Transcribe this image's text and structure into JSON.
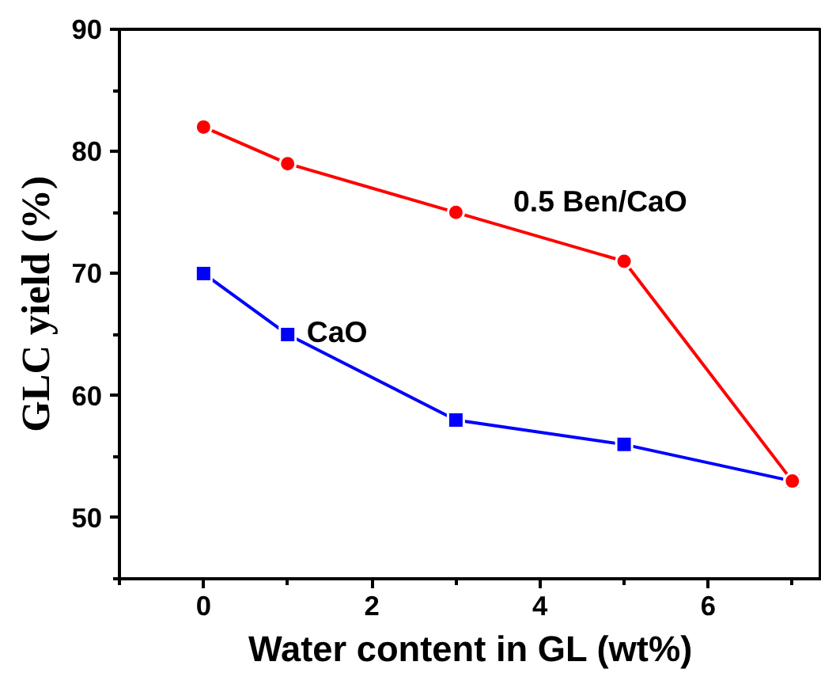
{
  "chart_data": {
    "type": "line",
    "xlabel": "Water content in GL (wt%)",
    "ylabel": "GLC yield (%)",
    "x": [
      0,
      1,
      3,
      5,
      7
    ],
    "series": [
      {
        "name": "0.5 Ben/CaO",
        "color": "#ff0000",
        "marker": "circle",
        "values": [
          82,
          79,
          75,
          71,
          53
        ]
      },
      {
        "name": "CaO",
        "color": "#0000ff",
        "marker": "square",
        "values": [
          70,
          65,
          58,
          56,
          53
        ]
      }
    ],
    "xlim": [
      -1,
      7.35
    ],
    "ylim": [
      45,
      90
    ],
    "xticks": [
      0,
      2,
      4,
      6
    ],
    "yticks": [
      50,
      60,
      70,
      80,
      90
    ],
    "grid": false
  }
}
